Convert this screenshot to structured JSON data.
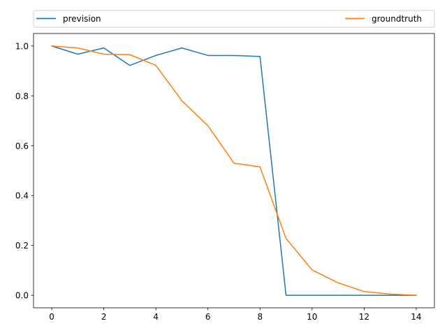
{
  "chart_data": {
    "type": "line",
    "title": "",
    "xlabel": "",
    "ylabel": "",
    "xlim": [
      -0.7,
      14.7
    ],
    "ylim": [
      -0.05,
      1.05
    ],
    "x_ticks": [
      0,
      2,
      4,
      6,
      8,
      10,
      12,
      14
    ],
    "y_ticks": [
      0.0,
      0.2,
      0.4,
      0.6,
      0.8,
      1.0
    ],
    "x_tick_labels": [
      "0",
      "2",
      "4",
      "6",
      "8",
      "10",
      "12",
      "14"
    ],
    "y_tick_labels": [
      "0.0",
      "0.2",
      "0.4",
      "0.6",
      "0.8",
      "1.0"
    ],
    "grid": false,
    "legend_position": "top, spanning full width, two columns",
    "x": [
      0,
      1,
      2,
      3,
      4,
      5,
      6,
      7,
      8,
      9,
      10,
      11,
      12,
      13,
      14
    ],
    "series": [
      {
        "name": "prevision",
        "color": "#1f77b4",
        "values": [
          1.0,
          0.967,
          0.992,
          0.922,
          0.962,
          0.992,
          0.962,
          0.962,
          0.958,
          0.0,
          0.0,
          0.0,
          0.0,
          0.0,
          0.0
        ]
      },
      {
        "name": "groundtruth",
        "color": "#ff7f0e",
        "values": [
          1.0,
          0.992,
          0.967,
          0.965,
          0.922,
          0.78,
          0.68,
          0.53,
          0.515,
          0.228,
          0.102,
          0.05,
          0.015,
          0.005,
          0.0
        ]
      }
    ]
  }
}
